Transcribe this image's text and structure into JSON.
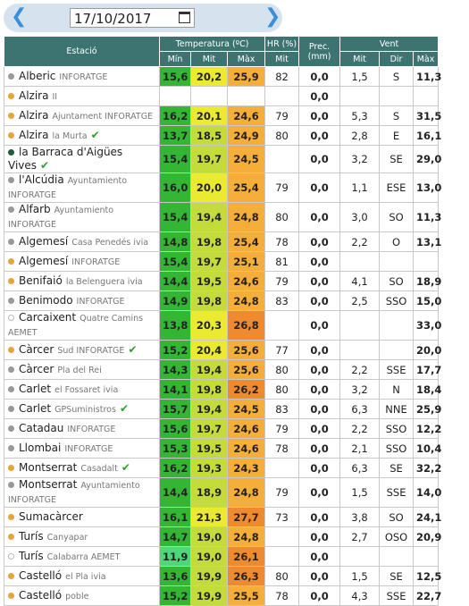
{
  "date": "17/10/2017",
  "header": {
    "station": "Estació",
    "temperature": "Temperatura (ºC)",
    "humidity": "HR (%)",
    "precipitation": "Prec. (mm)",
    "wind": "Vent",
    "subcolumns": [
      "Mín",
      "Mit",
      "Màx",
      "Mit",
      "Mit",
      "Dir",
      "Màx"
    ]
  },
  "rows": [
    {
      "dot": "#999",
      "name": "Alberic",
      "sub": "INFORATGE",
      "check": false,
      "cells": [
        "15,6",
        "20,2",
        "25,9",
        "82",
        "0,0",
        "1,5",
        "S",
        "11,3"
      ]
    },
    {
      "dot": "#e8a33a",
      "name": "Alzira",
      "sub": "II",
      "check": false,
      "cells": [
        null,
        null,
        null,
        null,
        "0,0",
        null,
        null,
        null
      ]
    },
    {
      "dot": "#e8a33a",
      "name": "Alzira",
      "sub": "Ajuntament INFORATGE",
      "check": false,
      "cells": [
        "16,2",
        "20,1",
        "24,6",
        "79",
        "0,0",
        "5,3",
        "S",
        "31,5"
      ]
    },
    {
      "dot": "#e8a33a",
      "name": "Alzira",
      "sub": "la Murta",
      "check": true,
      "cells": [
        "13,7",
        "18,5",
        "24,9",
        "80",
        "0,0",
        "2,8",
        "E",
        "16,1"
      ]
    },
    {
      "dot": "#1f5c3a",
      "name": "la Barraca d'Aigües Vives",
      "sub": null,
      "check": true,
      "cells": [
        "15,4",
        "19,7",
        "24,5",
        null,
        "0,0",
        "3,2",
        "SE",
        "29,0"
      ]
    },
    {
      "dot": "#999",
      "name": "l'Alcúdia",
      "sub": "Ayuntamiento INFORATGE",
      "check": false,
      "cells": [
        "16,0",
        "20,0",
        "25,4",
        "79",
        "0,0",
        "1,1",
        "ESE",
        "13,0"
      ]
    },
    {
      "dot": "#999",
      "name": "Alfarb",
      "sub": "Ayuntamiento INFORATGE",
      "check": false,
      "cells": [
        "15,4",
        "19,4",
        "24,8",
        "80",
        "0,0",
        "3,0",
        "SO",
        "11,3"
      ]
    },
    {
      "dot": "#999",
      "name": "Algemesí",
      "sub": "Casa Penedés ivia",
      "check": false,
      "cells": [
        "14,8",
        "19,8",
        "25,4",
        "78",
        "0,0",
        "2,2",
        "O",
        "13,1"
      ]
    },
    {
      "dot": "#e8a33a",
      "name": "Algemesí",
      "sub": "INFORATGE",
      "check": false,
      "cells": [
        "15,4",
        "19,7",
        "25,1",
        "81",
        "0,0",
        null,
        null,
        null
      ]
    },
    {
      "dot": "#e8a33a",
      "name": "Benifaió",
      "sub": "la Belenguera ivia",
      "check": false,
      "cells": [
        "14,4",
        "19,5",
        "24,6",
        "79",
        "0,0",
        "4,1",
        "SO",
        "18,9"
      ]
    },
    {
      "dot": "#999",
      "name": "Benimodo",
      "sub": "INFORATGE",
      "check": false,
      "cells": [
        "14,9",
        "19,8",
        "24,8",
        "83",
        "0,0",
        "2,5",
        "SSO",
        "15,0"
      ]
    },
    {
      "dot": "none",
      "name": "Carcaixent",
      "sub": "Quatre Camins AEMET",
      "check": false,
      "cells": [
        "13,8",
        "20,3",
        "26,8",
        null,
        "0,0",
        null,
        null,
        "33,0"
      ]
    },
    {
      "dot": "#e8a33a",
      "name": "Càrcer",
      "sub": "Sud INFORATGE",
      "check": true,
      "cells": [
        "15,2",
        "20,4",
        "25,6",
        "77",
        "0,0",
        null,
        null,
        "20,0"
      ]
    },
    {
      "dot": "#999",
      "name": "Càrcer",
      "sub": "Pla del Rei",
      "check": false,
      "cells": [
        "14,3",
        "19,4",
        "25,6",
        "80",
        "0,0",
        "2,2",
        "SSE",
        "17,7"
      ]
    },
    {
      "dot": "#999",
      "name": "Carlet",
      "sub": "el Fossaret ivia",
      "check": false,
      "cells": [
        "14,1",
        "19,8",
        "26,2",
        "80",
        "0,0",
        "3,2",
        "N",
        "18,4"
      ]
    },
    {
      "dot": "#999",
      "name": "Carlet",
      "sub": "GPSuministros",
      "check": true,
      "cells": [
        "15,7",
        "19,4",
        "24,5",
        "83",
        "0,0",
        "6,3",
        "NNE",
        "25,9"
      ]
    },
    {
      "dot": "#999",
      "name": "Catadau",
      "sub": "INFORATGE",
      "check": false,
      "cells": [
        "15,6",
        "19,7",
        "24,6",
        "79",
        "0,0",
        "2,2",
        "SSO",
        "12,2"
      ]
    },
    {
      "dot": "#999",
      "name": "Llombai",
      "sub": "INFORATGE",
      "check": false,
      "cells": [
        "15,3",
        "19,5",
        "24,6",
        "78",
        "0,0",
        "2,1",
        "SSO",
        "10,4"
      ]
    },
    {
      "dot": "#e8a33a",
      "name": "Montserrat",
      "sub": "Casadalt",
      "check": true,
      "cells": [
        "16,2",
        "19,3",
        "24,3",
        null,
        "0,0",
        "6,3",
        "SE",
        "32,2"
      ]
    },
    {
      "dot": "#999",
      "name": "Montserrat",
      "sub": "Ayuntamiento INFORATGE",
      "check": false,
      "cells": [
        "14,4",
        "18,9",
        "24,8",
        "79",
        "0,0",
        "1,5",
        "SSE",
        "14,0"
      ]
    },
    {
      "dot": "#e8a33a",
      "name": "Sumacàrcer",
      "sub": null,
      "check": false,
      "cells": [
        "16,1",
        "21,3",
        "27,7",
        "73",
        "0,0",
        "3,8",
        "SO",
        "24,1"
      ]
    },
    {
      "dot": "#e8a33a",
      "name": "Turís",
      "sub": "Canyapar",
      "check": false,
      "cells": [
        "14,7",
        "19,0",
        "24,8",
        null,
        "0,0",
        "2,7",
        "OSO",
        "20,9"
      ]
    },
    {
      "dot": "none",
      "name": "Turís",
      "sub": "Calabarra AEMET",
      "check": false,
      "cells": [
        "11,9",
        "19,0",
        "26,1",
        null,
        "0,0",
        null,
        null,
        null
      ]
    },
    {
      "dot": "#e8a33a",
      "name": "Castelló",
      "sub": "el Pla ivia",
      "check": false,
      "cells": [
        "13,6",
        "19,9",
        "26,3",
        "80",
        "0,0",
        "1,5",
        "SE",
        "12,5"
      ]
    },
    {
      "dot": "#e8a33a",
      "name": "Castelló",
      "sub": "poble",
      "check": false,
      "cells": [
        "15,2",
        "19,9",
        "25,5",
        "78",
        "0,0",
        "4,3",
        "SSE",
        "22,7"
      ]
    }
  ]
}
